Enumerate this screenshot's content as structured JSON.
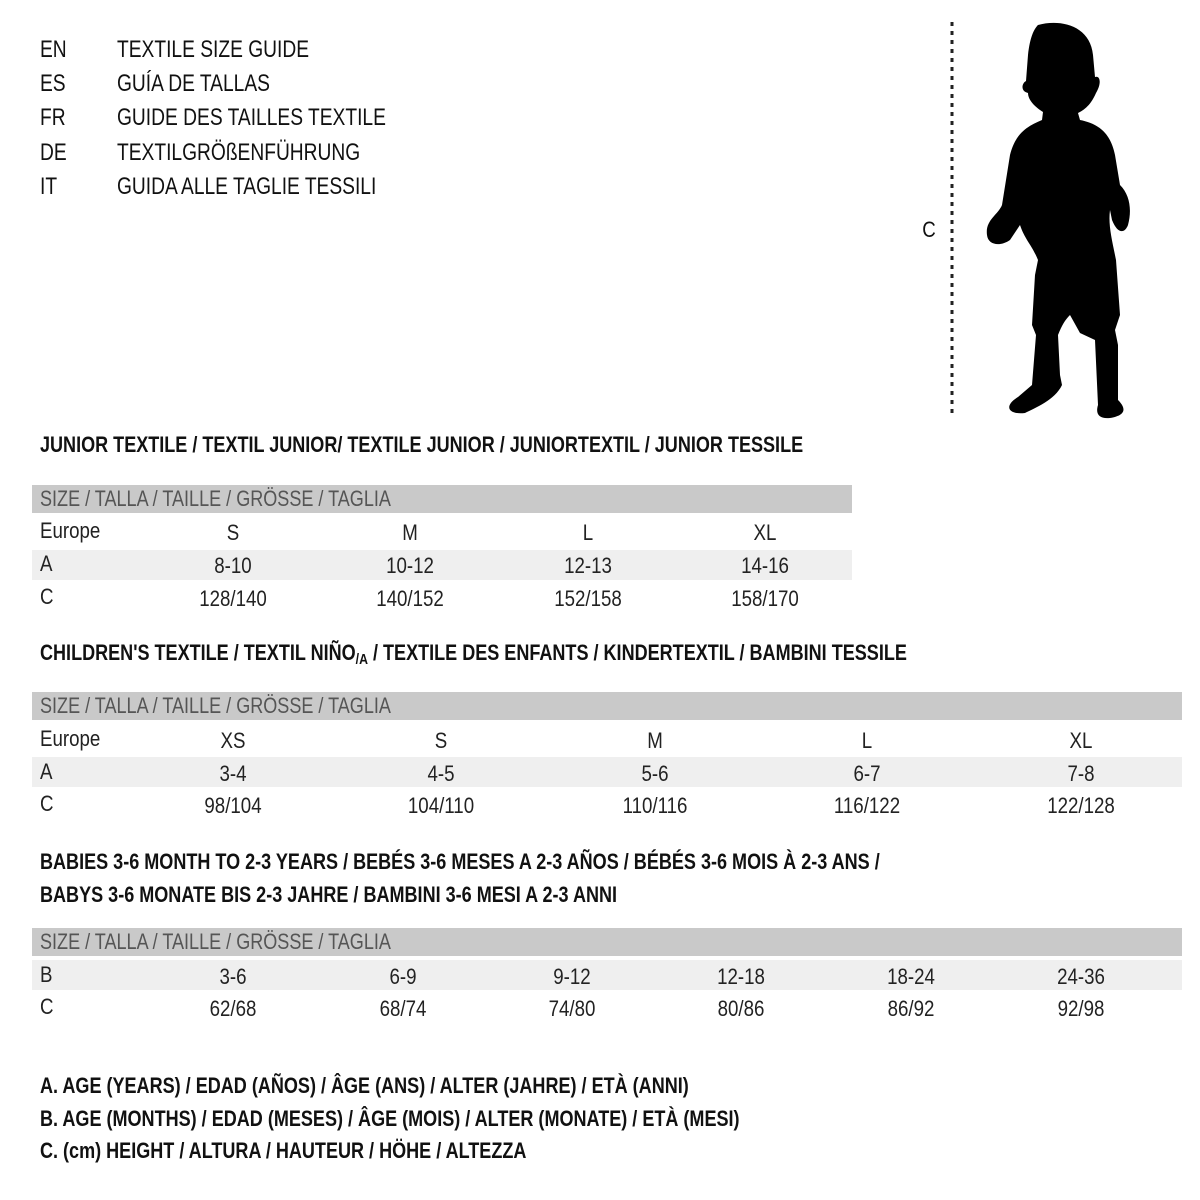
{
  "languages": [
    {
      "code": "EN",
      "text": "TEXTILE SIZE GUIDE"
    },
    {
      "code": "ES",
      "text": "GUÍA DE TALLAS"
    },
    {
      "code": "FR",
      "text": "GUIDE DES TAILLES TEXTILE"
    },
    {
      "code": "DE",
      "text": "TEXTILGRÖßENFÜHRUNG"
    },
    {
      "code": "IT",
      "text": "GUIDA ALLE TAGLIE TESSILI"
    }
  ],
  "figure": {
    "measure_label": "C",
    "icon": "child-silhouette-icon"
  },
  "header_label": "SIZE / TALLA / TAILLE / GRÖSSE / TAGLIA",
  "junior": {
    "title": "JUNIOR TEXTILE / TEXTIL JUNIOR/ TEXTILE JUNIOR / JUNIORTEXTIL / JUNIOR TESSILE",
    "rows": [
      {
        "label": "Europe",
        "values": [
          "S",
          "M",
          "L",
          "XL"
        ]
      },
      {
        "label": "A",
        "values": [
          "8-10",
          "10-12",
          "12-13",
          "14-16"
        ]
      },
      {
        "label": "C",
        "values": [
          "128/140",
          "140/152",
          "152/158",
          "158/170"
        ]
      }
    ]
  },
  "children": {
    "title_a": "CHILDREN'S TEXTILE / TEXTIL NIÑO",
    "title_sub": "/A",
    "title_b": " / TEXTILE DES ENFANTS / KINDERTEXTIL / BAMBINI TESSILE",
    "rows": [
      {
        "label": "Europe",
        "values": [
          "XS",
          "S",
          "M",
          "L",
          "XL"
        ]
      },
      {
        "label": "A",
        "values": [
          "3-4",
          "4-5",
          "5-6",
          "6-7",
          "7-8"
        ]
      },
      {
        "label": "C",
        "values": [
          "98/104",
          "104/110",
          "110/116",
          "116/122",
          "122/128"
        ]
      }
    ]
  },
  "babies": {
    "title_line1": "BABIES 3-6 MONTH TO 2-3 YEARS / BEBÉS 3-6 MESES A 2-3 AÑOS / BÉBÉS 3-6 MOIS À 2-3 ANS /",
    "title_line2": "BABYS 3-6 MONATE BIS 2-3 JAHRE / BAMBINI 3-6 MESI A 2-3 ANNI",
    "rows": [
      {
        "label": "B",
        "values": [
          "3-6",
          "6-9",
          "9-12",
          "12-18",
          "18-24",
          "24-36"
        ]
      },
      {
        "label": "C",
        "values": [
          "62/68",
          "68/74",
          "74/80",
          "80/86",
          "86/92",
          "92/98"
        ]
      }
    ]
  },
  "legend": [
    "A. AGE (YEARS) / EDAD (AÑOS) / ÂGE (ANS) / ALTER (JAHRE) / ETÀ (ANNI)",
    "B. AGE (MONTHS) / EDAD (MESES) / ÂGE (MOIS) / ALTER (MONATE) / ETÀ (MESI)",
    "C. (cm) HEIGHT / ALTURA / HAUTEUR / HÖHE / ALTEZZA"
  ],
  "colors": {
    "header_bg": "#c9c9c9",
    "stripe_bg": "#efefef"
  }
}
